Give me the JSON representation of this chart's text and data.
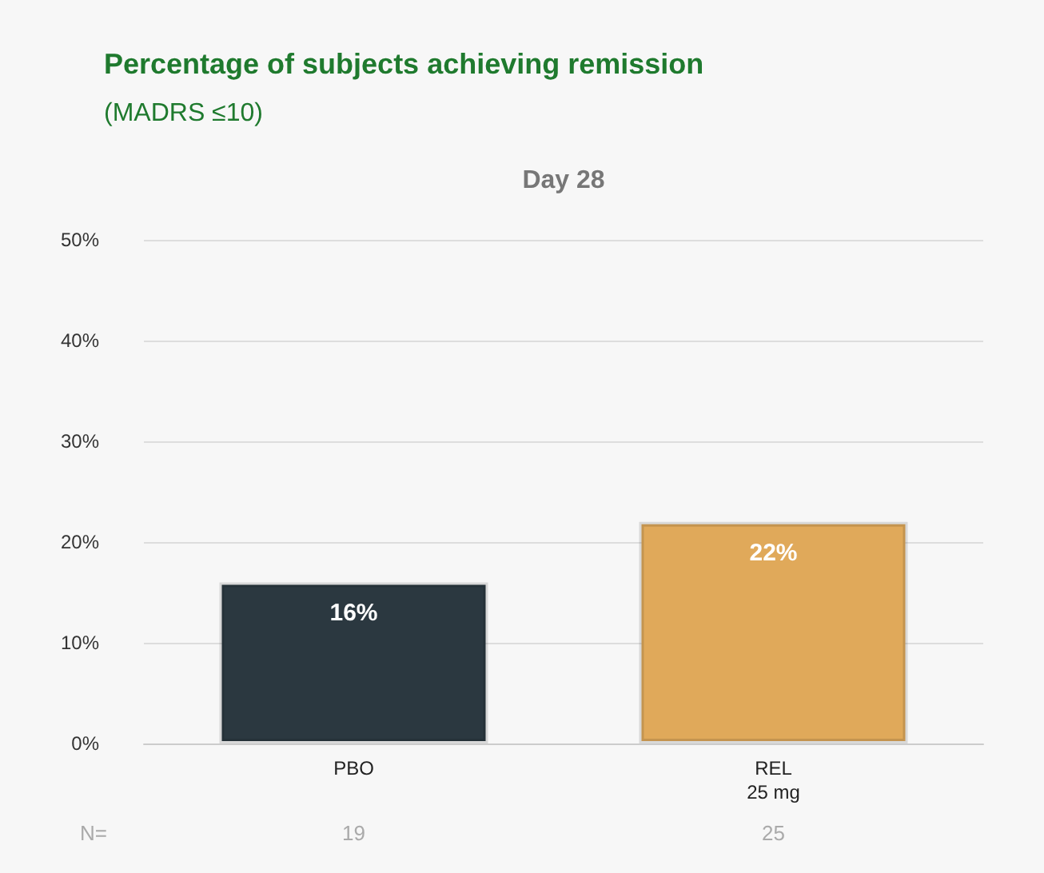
{
  "chart_data": {
    "type": "bar",
    "title": "Percentage of subjects achieving remission",
    "subtitle": "(MADRS ≤10)",
    "categories": [
      "PBO",
      "REL\n25 mg"
    ],
    "values": [
      16,
      22
    ],
    "colors": [
      "#2b3840",
      "#e0a95a"
    ],
    "value_labels": [
      "16%",
      "22%"
    ],
    "ylim": [
      0,
      50
    ],
    "yticks": [
      {
        "value": 0,
        "label": "0%"
      },
      {
        "value": 10,
        "label": "10%"
      },
      {
        "value": 20,
        "label": "20%"
      },
      {
        "value": 30,
        "label": "30%"
      },
      {
        "value": 40,
        "label": "40%"
      },
      {
        "value": 50,
        "label": "50%"
      }
    ],
    "grid": "y",
    "annotations": [
      "Day 28",
      "N=",
      "19",
      "25"
    ]
  }
}
